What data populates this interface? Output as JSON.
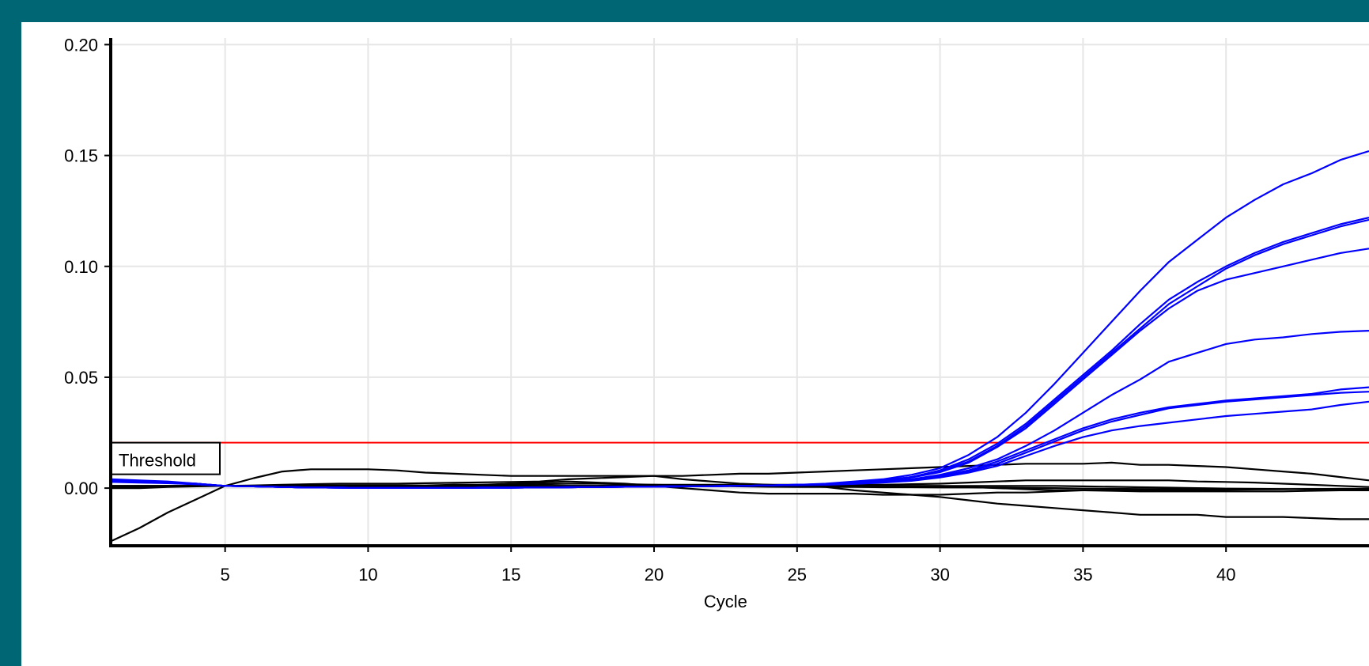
{
  "chart_data": {
    "type": "line",
    "xlabel": "Cycle",
    "ylabel": "",
    "xlim": [
      1,
      45
    ],
    "ylim": [
      -0.026,
      0.203
    ],
    "xticks": [
      5,
      10,
      15,
      20,
      25,
      30,
      35,
      40
    ],
    "yticks": [
      0.0,
      0.05,
      0.1,
      0.15,
      0.2
    ],
    "ytick_labels": [
      "0.00",
      "0.05",
      "0.10",
      "0.15",
      "0.20"
    ],
    "grid": true,
    "threshold": {
      "label": "Threshold",
      "value": 0.0205,
      "color": "#ff0000"
    },
    "colors": {
      "positive": "#0000ff",
      "negative": "#000000",
      "grid": "#e6e6e6",
      "threshold": "#ff0000"
    },
    "x": [
      1,
      2,
      3,
      4,
      5,
      6,
      7,
      8,
      9,
      10,
      11,
      12,
      13,
      14,
      15,
      16,
      17,
      18,
      19,
      20,
      21,
      22,
      23,
      24,
      25,
      26,
      27,
      28,
      29,
      30,
      31,
      32,
      33,
      34,
      35,
      36,
      37,
      38,
      39,
      40,
      41,
      42,
      43,
      44,
      45
    ],
    "series": [
      {
        "group": "positive",
        "values": [
          0.004,
          0.0035,
          0.003,
          0.002,
          0.001,
          0.0008,
          0.0005,
          0.0003,
          0.0002,
          0.0001,
          0.0001,
          0.0001,
          0.0001,
          0.0002,
          0.0002,
          0.0003,
          0.0004,
          0.0005,
          0.0006,
          0.0007,
          0.0008,
          0.0009,
          0.001,
          0.0012,
          0.0015,
          0.002,
          0.003,
          0.004,
          0.006,
          0.009,
          0.015,
          0.023,
          0.034,
          0.047,
          0.061,
          0.075,
          0.089,
          0.102,
          0.112,
          0.122,
          0.13,
          0.137,
          0.142,
          0.148,
          0.152
        ]
      },
      {
        "group": "positive",
        "values": [
          0.003,
          0.0028,
          0.0025,
          0.002,
          0.001,
          0.0008,
          0.0005,
          0.0003,
          0.0002,
          0.0001,
          0.0001,
          0.0001,
          0.0001,
          0.0002,
          0.0002,
          0.0003,
          0.0004,
          0.0005,
          0.0006,
          0.0007,
          0.0008,
          0.0009,
          0.001,
          0.0012,
          0.0015,
          0.0018,
          0.0025,
          0.0035,
          0.005,
          0.008,
          0.013,
          0.02,
          0.029,
          0.04,
          0.051,
          0.062,
          0.074,
          0.085,
          0.093,
          0.1,
          0.106,
          0.111,
          0.115,
          0.119,
          0.122
        ]
      },
      {
        "group": "positive",
        "values": [
          0.0035,
          0.003,
          0.0027,
          0.002,
          0.001,
          0.0008,
          0.0005,
          0.0003,
          0.0002,
          0.0001,
          0.0001,
          0.0001,
          0.0001,
          0.0002,
          0.0002,
          0.0003,
          0.0004,
          0.0005,
          0.0006,
          0.0007,
          0.0008,
          0.0009,
          0.001,
          0.0012,
          0.0015,
          0.0018,
          0.0025,
          0.0035,
          0.005,
          0.0075,
          0.012,
          0.019,
          0.028,
          0.039,
          0.05,
          0.061,
          0.072,
          0.083,
          0.091,
          0.099,
          0.105,
          0.11,
          0.114,
          0.118,
          0.121
        ]
      },
      {
        "group": "positive",
        "values": [
          0.0032,
          0.0029,
          0.0026,
          0.002,
          0.001,
          0.0008,
          0.0005,
          0.0003,
          0.0002,
          0.0001,
          0.0001,
          0.0001,
          0.0001,
          0.0002,
          0.0002,
          0.0003,
          0.0004,
          0.0005,
          0.0006,
          0.0007,
          0.0008,
          0.0009,
          0.001,
          0.0012,
          0.0015,
          0.0018,
          0.0024,
          0.0034,
          0.0048,
          0.0072,
          0.0115,
          0.0185,
          0.027,
          0.038,
          0.049,
          0.06,
          0.071,
          0.081,
          0.089,
          0.094,
          0.097,
          0.1,
          0.103,
          0.106,
          0.108
        ]
      },
      {
        "group": "positive",
        "values": [
          0.003,
          0.0028,
          0.0025,
          0.0019,
          0.001,
          0.0008,
          0.0005,
          0.0003,
          0.0002,
          0.0001,
          0.0001,
          0.0001,
          0.0001,
          0.0002,
          0.0002,
          0.0003,
          0.0004,
          0.0005,
          0.0006,
          0.0007,
          0.0008,
          0.0009,
          0.001,
          0.0012,
          0.0014,
          0.0017,
          0.0022,
          0.003,
          0.004,
          0.006,
          0.009,
          0.013,
          0.019,
          0.026,
          0.034,
          0.042,
          0.049,
          0.057,
          0.061,
          0.065,
          0.067,
          0.068,
          0.0695,
          0.0705,
          0.071
        ]
      },
      {
        "group": "positive",
        "values": [
          0.003,
          0.0027,
          0.0024,
          0.0018,
          0.001,
          0.0008,
          0.0005,
          0.0003,
          0.0002,
          0.0001,
          0.0001,
          0.0001,
          0.0001,
          0.0002,
          0.0002,
          0.0003,
          0.0004,
          0.0005,
          0.0006,
          0.0007,
          0.0008,
          0.0009,
          0.001,
          0.0012,
          0.0014,
          0.0017,
          0.0021,
          0.0028,
          0.0038,
          0.0055,
          0.008,
          0.012,
          0.017,
          0.022,
          0.027,
          0.031,
          0.034,
          0.0365,
          0.038,
          0.0395,
          0.0405,
          0.0415,
          0.0425,
          0.0445,
          0.0455
        ]
      },
      {
        "group": "positive",
        "values": [
          0.0029,
          0.0026,
          0.0023,
          0.0018,
          0.001,
          0.0008,
          0.0005,
          0.0003,
          0.0002,
          0.0001,
          0.0001,
          0.0001,
          0.0001,
          0.0002,
          0.0002,
          0.0003,
          0.0004,
          0.0005,
          0.0006,
          0.0007,
          0.0008,
          0.0009,
          0.001,
          0.0012,
          0.0014,
          0.0016,
          0.002,
          0.0027,
          0.0036,
          0.0052,
          0.0076,
          0.011,
          0.016,
          0.021,
          0.026,
          0.03,
          0.033,
          0.036,
          0.0375,
          0.039,
          0.04,
          0.041,
          0.042,
          0.043,
          0.0435
        ]
      },
      {
        "group": "positive",
        "values": [
          0.0028,
          0.0025,
          0.0022,
          0.0017,
          0.001,
          0.0008,
          0.0005,
          0.0003,
          0.0002,
          0.0001,
          0.0001,
          0.0001,
          0.0001,
          0.0002,
          0.0002,
          0.0003,
          0.0004,
          0.0005,
          0.0006,
          0.0007,
          0.0008,
          0.0009,
          0.001,
          0.0012,
          0.0013,
          0.0015,
          0.0019,
          0.0025,
          0.0033,
          0.0048,
          0.007,
          0.01,
          0.0145,
          0.019,
          0.023,
          0.026,
          0.028,
          0.0295,
          0.031,
          0.0325,
          0.0335,
          0.0345,
          0.0355,
          0.0375,
          0.039
        ]
      },
      {
        "group": "negative",
        "values": [
          -0.024,
          -0.018,
          -0.011,
          -0.005,
          0.001,
          0.0045,
          0.0075,
          0.0085,
          0.0085,
          0.0085,
          0.008,
          0.007,
          0.0065,
          0.006,
          0.0055,
          0.0055,
          0.0055,
          0.0055,
          0.0055,
          0.0055,
          0.0055,
          0.006,
          0.0065,
          0.0065,
          0.007,
          0.0075,
          0.008,
          0.0085,
          0.009,
          0.0095,
          0.01,
          0.0105,
          0.011,
          0.011,
          0.011,
          0.0115,
          0.0105,
          0.0105,
          0.01,
          0.0095,
          0.0085,
          0.0075,
          0.0065,
          0.005,
          0.0035
        ]
      },
      {
        "group": "negative",
        "values": [
          0.0005,
          0.0005,
          0.001,
          0.001,
          0.001,
          0.0012,
          0.0015,
          0.0018,
          0.002,
          0.002,
          0.002,
          0.0022,
          0.0024,
          0.0026,
          0.0028,
          0.003,
          0.004,
          0.0045,
          0.005,
          0.0055,
          0.004,
          0.003,
          0.002,
          0.0015,
          0.001,
          0.0005,
          -0.001,
          -0.002,
          -0.003,
          -0.004,
          -0.0055,
          -0.007,
          -0.008,
          -0.009,
          -0.01,
          -0.011,
          -0.012,
          -0.012,
          -0.012,
          -0.013,
          -0.013,
          -0.013,
          -0.0135,
          -0.014,
          -0.014
        ]
      },
      {
        "group": "negative",
        "values": [
          0.001,
          0.001,
          0.001,
          0.001,
          0.001,
          0.001,
          0.001,
          0.001,
          0.001,
          0.001,
          0.001,
          0.001,
          0.001,
          0.0015,
          0.002,
          0.0025,
          0.003,
          0.0025,
          0.002,
          0.001,
          0.0,
          -0.001,
          -0.002,
          -0.0025,
          -0.0025,
          -0.0025,
          -0.0025,
          -0.003,
          -0.003,
          -0.003,
          -0.0025,
          -0.002,
          -0.002,
          -0.0015,
          -0.001,
          -0.001,
          -0.001,
          -0.001,
          -0.0008,
          -0.0008,
          -0.0006,
          -0.0005,
          -0.0004,
          -0.0003,
          -0.0003
        ]
      },
      {
        "group": "negative",
        "values": [
          0.001,
          0.001,
          0.001,
          0.001,
          0.001,
          0.001,
          0.001,
          0.001,
          0.001,
          0.001,
          0.001,
          0.001,
          0.001,
          0.001,
          0.001,
          0.001,
          0.001,
          0.001,
          0.0012,
          0.0015,
          0.0015,
          0.0015,
          0.0015,
          0.0015,
          0.0015,
          0.0015,
          0.0015,
          0.0015,
          0.0018,
          0.002,
          0.0025,
          0.003,
          0.0035,
          0.0035,
          0.0035,
          0.0035,
          0.0035,
          0.0035,
          0.003,
          0.0028,
          0.0025,
          0.002,
          0.0015,
          0.001,
          0.0005
        ]
      },
      {
        "group": "negative",
        "values": [
          0.0,
          0.0,
          0.0005,
          0.0008,
          0.001,
          0.001,
          0.001,
          0.001,
          0.001,
          0.001,
          0.001,
          0.001,
          0.001,
          0.001,
          0.001,
          0.001,
          0.001,
          0.001,
          0.001,
          0.001,
          0.001,
          0.001,
          0.001,
          0.001,
          0.001,
          0.001,
          0.001,
          0.001,
          0.001,
          0.001,
          0.0005,
          0.0,
          -0.0005,
          -0.001,
          -0.001,
          -0.0012,
          -0.0015,
          -0.0015,
          -0.0015,
          -0.0015,
          -0.0015,
          -0.0015,
          -0.0012,
          -0.001,
          -0.001
        ]
      },
      {
        "group": "negative",
        "values": [
          0.0005,
          0.0005,
          0.0008,
          0.001,
          0.001,
          0.001,
          0.0012,
          0.0012,
          0.0012,
          0.0012,
          0.0012,
          0.0012,
          0.0015,
          0.0015,
          0.0015,
          0.0018,
          0.002,
          0.002,
          0.0018,
          0.0015,
          0.0012,
          0.001,
          0.0008,
          0.0006,
          0.0005,
          0.0005,
          0.0005,
          0.0004,
          0.0004,
          0.0003,
          0.0003,
          0.0002,
          0.0001,
          0.0,
          -0.0002,
          -0.0003,
          -0.0004,
          -0.0005,
          -0.0006,
          -0.0006,
          -0.0005,
          -0.0005,
          -0.0004,
          -0.0004,
          -0.0003
        ]
      },
      {
        "group": "negative",
        "values": [
          0.001,
          0.001,
          0.001,
          0.001,
          0.001,
          0.001,
          0.001,
          0.001,
          0.001,
          0.001,
          0.001,
          0.001,
          0.001,
          0.001,
          0.001,
          0.001,
          0.001,
          0.001,
          0.001,
          0.001,
          0.001,
          0.001,
          0.001,
          0.001,
          0.001,
          0.001,
          0.001,
          0.001,
          0.001,
          0.001,
          0.001,
          0.001,
          0.001,
          0.001,
          0.0008,
          0.0006,
          0.0004,
          0.0002,
          0.0,
          -0.0002,
          -0.0003,
          -0.0004,
          -0.0005,
          -0.0006,
          -0.0006
        ]
      }
    ]
  }
}
